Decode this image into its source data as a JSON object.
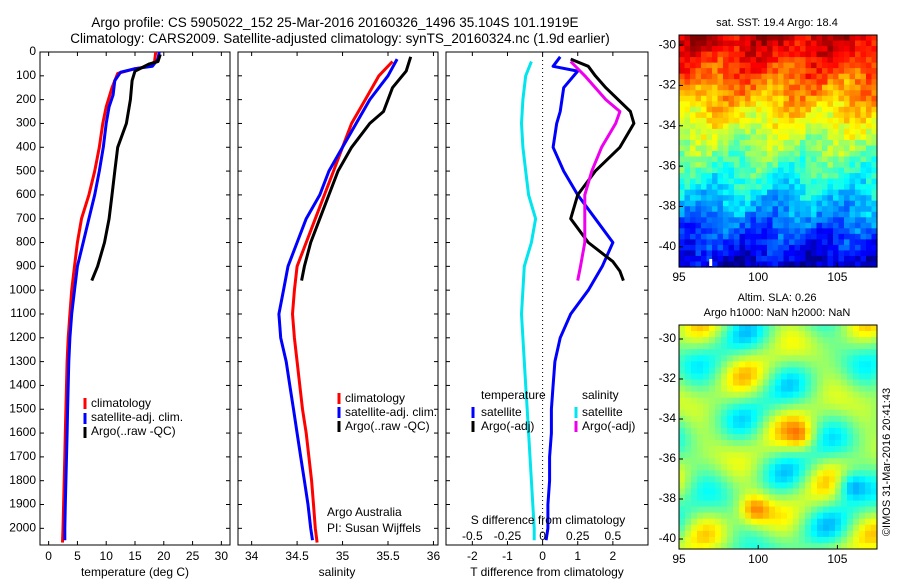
{
  "header": {
    "line1": "Argo profile: CS 5905022_152 25-Mar-2016 20160326_1496 35.104S 101.1919E",
    "line2": "Climatology: CARS2009. Satellite-adjusted climatology: synTS_20160324.nc (1.9d earlier)"
  },
  "footer_stamp": "©IMOS 31-Mar-2016 20:41:43",
  "colors": {
    "climatology": "#ff0000",
    "satellite": "#0000ff",
    "argo": "#000000",
    "salinity_satellite": "#00e5ee",
    "salinity_argo": "#ee00ee"
  },
  "chart_data": [
    {
      "id": "temperature",
      "type": "line",
      "xlabel": "temperature (deg C)",
      "xlim": [
        -1.5,
        31.5
      ],
      "xticks": [
        0,
        5,
        10,
        15,
        20,
        25,
        30
      ],
      "ylim": [
        0,
        2070
      ],
      "yticks": [
        0,
        100,
        200,
        300,
        400,
        500,
        600,
        700,
        800,
        900,
        1000,
        1100,
        1200,
        1300,
        1400,
        1500,
        1600,
        1700,
        1800,
        1900,
        2000
      ],
      "legend": {
        "placement": "lower-center",
        "entries": [
          "climatology",
          "satellite-adj. clim.",
          "Argo(..raw -QC)"
        ]
      },
      "series": [
        {
          "name": "climatology",
          "color": "#ff0000",
          "points": [
            [
              18.6,
              0
            ],
            [
              18.4,
              40
            ],
            [
              17.5,
              60
            ],
            [
              15.0,
              70
            ],
            [
              12.0,
              90
            ],
            [
              11.0,
              150
            ],
            [
              10.0,
              230
            ],
            [
              9.4,
              300
            ],
            [
              8.8,
              400
            ],
            [
              8.0,
              500
            ],
            [
              7.0,
              600
            ],
            [
              5.7,
              700
            ],
            [
              5.0,
              800
            ],
            [
              4.5,
              900
            ],
            [
              4.0,
              1000
            ],
            [
              3.7,
              1100
            ],
            [
              3.4,
              1200
            ],
            [
              3.2,
              1300
            ],
            [
              3.1,
              1400
            ],
            [
              3.0,
              1500
            ],
            [
              2.9,
              1600
            ],
            [
              2.8,
              1700
            ],
            [
              2.7,
              1800
            ],
            [
              2.6,
              1900
            ],
            [
              2.5,
              2000
            ],
            [
              2.4,
              2060
            ]
          ]
        },
        {
          "name": "satellite-adj. clim.",
          "color": "#0000ff",
          "points": [
            [
              19.2,
              0
            ],
            [
              19.0,
              30
            ],
            [
              18.0,
              60
            ],
            [
              15.0,
              70
            ],
            [
              12.5,
              85
            ],
            [
              11.5,
              120
            ],
            [
              11.2,
              180
            ],
            [
              10.5,
              230
            ],
            [
              10.0,
              300
            ],
            [
              9.5,
              400
            ],
            [
              8.8,
              500
            ],
            [
              8.0,
              600
            ],
            [
              7.0,
              700
            ],
            [
              6.0,
              800
            ],
            [
              5.0,
              900
            ],
            [
              4.5,
              1000
            ],
            [
              4.0,
              1100
            ],
            [
              3.7,
              1200
            ],
            [
              3.5,
              1300
            ],
            [
              3.4,
              1400
            ],
            [
              3.3,
              1500
            ],
            [
              3.2,
              1600
            ],
            [
              3.1,
              1700
            ],
            [
              3.0,
              1800
            ],
            [
              2.9,
              1900
            ],
            [
              2.8,
              2000
            ],
            [
              2.8,
              2050
            ]
          ]
        },
        {
          "name": "Argo(..raw -QC)",
          "color": "#000000",
          "points": [
            [
              19.4,
              10
            ],
            [
              19.0,
              40
            ],
            [
              17.5,
              50
            ],
            [
              15.0,
              80
            ],
            [
              14.5,
              120
            ],
            [
              14.2,
              200
            ],
            [
              13.5,
              300
            ],
            [
              12.0,
              400
            ],
            [
              11.5,
              500
            ],
            [
              11.0,
              600
            ],
            [
              10.5,
              700
            ],
            [
              9.7,
              800
            ],
            [
              8.5,
              900
            ],
            [
              7.5,
              960
            ]
          ]
        }
      ]
    },
    {
      "id": "salinity",
      "type": "line",
      "xlabel": "salinity",
      "xlim": [
        33.85,
        36.05
      ],
      "xticks": [
        34,
        34.5,
        35,
        35.5,
        36
      ],
      "ylim": [
        0,
        2070
      ],
      "legend": {
        "placement": "lower-center",
        "entries": [
          "climatology",
          "satellite-adj. clim.",
          "Argo(..raw -QC)"
        ]
      },
      "annotation": [
        "Argo Australia",
        "PI: Susan Wijffels"
      ],
      "series": [
        {
          "name": "climatology",
          "color": "#ff0000",
          "points": [
            [
              35.55,
              40
            ],
            [
              35.4,
              100
            ],
            [
              35.25,
              200
            ],
            [
              35.1,
              300
            ],
            [
              35.0,
              400
            ],
            [
              34.9,
              500
            ],
            [
              34.8,
              600
            ],
            [
              34.7,
              700
            ],
            [
              34.6,
              800
            ],
            [
              34.5,
              900
            ],
            [
              34.47,
              1000
            ],
            [
              34.45,
              1100
            ],
            [
              34.47,
              1200
            ],
            [
              34.5,
              1300
            ],
            [
              34.53,
              1400
            ],
            [
              34.56,
              1500
            ],
            [
              34.6,
              1600
            ],
            [
              34.63,
              1700
            ],
            [
              34.66,
              1800
            ],
            [
              34.68,
              1900
            ],
            [
              34.7,
              2000
            ],
            [
              34.72,
              2060
            ]
          ]
        },
        {
          "name": "satellite-adj. clim.",
          "color": "#0000ff",
          "points": [
            [
              35.6,
              30
            ],
            [
              35.5,
              100
            ],
            [
              35.3,
              200
            ],
            [
              35.15,
              300
            ],
            [
              35.0,
              400
            ],
            [
              34.85,
              500
            ],
            [
              34.75,
              600
            ],
            [
              34.6,
              700
            ],
            [
              34.5,
              800
            ],
            [
              34.4,
              900
            ],
            [
              34.35,
              1000
            ],
            [
              34.3,
              1100
            ],
            [
              34.32,
              1200
            ],
            [
              34.38,
              1300
            ],
            [
              34.42,
              1400
            ],
            [
              34.46,
              1500
            ],
            [
              34.5,
              1600
            ],
            [
              34.54,
              1700
            ],
            [
              34.58,
              1800
            ],
            [
              34.62,
              1900
            ],
            [
              34.65,
              2000
            ],
            [
              34.67,
              2050
            ]
          ]
        },
        {
          "name": "Argo(..raw -QC)",
          "color": "#000000",
          "points": [
            [
              35.75,
              20
            ],
            [
              35.7,
              80
            ],
            [
              35.55,
              150
            ],
            [
              35.45,
              250
            ],
            [
              35.3,
              300
            ],
            [
              35.1,
              400
            ],
            [
              34.95,
              500
            ],
            [
              34.85,
              600
            ],
            [
              34.75,
              700
            ],
            [
              34.65,
              800
            ],
            [
              34.58,
              900
            ],
            [
              34.55,
              960
            ]
          ]
        }
      ]
    },
    {
      "id": "difference",
      "type": "line",
      "xlabel": "T difference from climatology",
      "xlabel_top": "S difference from climatology",
      "xlim": [
        -2.75,
        3.0
      ],
      "xticks": [
        -2,
        -1,
        0,
        1,
        2
      ],
      "xticks_salinity": [
        -0.5,
        -0.25,
        0,
        0.25,
        0.5
      ],
      "xtick_labels_salinity": [
        "-0.5",
        "-0.25",
        "0",
        "0.25",
        "0.5"
      ],
      "zero_line": "dotted",
      "legend": {
        "placement": "lower-center",
        "col1_title": "temperature",
        "col2_title": "salinity",
        "entries": [
          "satellite",
          "Argo(-adj)",
          "satellite",
          "Argo(-adj)"
        ]
      },
      "series": [
        {
          "name": "satellite",
          "group": "temperature",
          "color": "#0000ff",
          "points": [
            [
              0.5,
              20
            ],
            [
              0.3,
              60
            ],
            [
              1.0,
              80
            ],
            [
              0.6,
              150
            ],
            [
              0.5,
              250
            ],
            [
              0.4,
              300
            ],
            [
              0.3,
              400
            ],
            [
              0.6,
              500
            ],
            [
              1.0,
              600
            ],
            [
              1.5,
              700
            ],
            [
              2.0,
              800
            ],
            [
              1.7,
              900
            ],
            [
              1.3,
              1000
            ],
            [
              0.8,
              1100
            ],
            [
              0.5,
              1200
            ],
            [
              0.35,
              1300
            ],
            [
              0.3,
              1400
            ],
            [
              0.25,
              1500
            ],
            [
              0.25,
              1600
            ],
            [
              0.2,
              1700
            ],
            [
              0.2,
              1800
            ],
            [
              0.15,
              1900
            ],
            [
              0.15,
              2000
            ],
            [
              0.1,
              2050
            ]
          ]
        },
        {
          "name": "Argo(-adj)",
          "group": "temperature",
          "color": "#000000",
          "points": [
            [
              0.8,
              30
            ],
            [
              1.3,
              60
            ],
            [
              1.5,
              100
            ],
            [
              1.8,
              150
            ],
            [
              2.5,
              250
            ],
            [
              2.6,
              300
            ],
            [
              2.2,
              400
            ],
            [
              1.5,
              500
            ],
            [
              1.0,
              600
            ],
            [
              0.8,
              700
            ],
            [
              1.3,
              800
            ],
            [
              2.0,
              880
            ],
            [
              2.2,
              920
            ],
            [
              2.3,
              960
            ]
          ]
        },
        {
          "name": "satellite",
          "group": "salinity",
          "color": "#00e5ee",
          "points": [
            [
              -0.08,
              40
            ],
            [
              -0.12,
              100
            ],
            [
              -0.14,
              200
            ],
            [
              -0.15,
              300
            ],
            [
              -0.14,
              400
            ],
            [
              -0.12,
              500
            ],
            [
              -0.1,
              600
            ],
            [
              -0.05,
              700
            ],
            [
              -0.08,
              800
            ],
            [
              -0.13,
              900
            ],
            [
              -0.14,
              1000
            ],
            [
              -0.15,
              1100
            ],
            [
              -0.14,
              1200
            ],
            [
              -0.13,
              1300
            ],
            [
              -0.12,
              1400
            ],
            [
              -0.11,
              1500
            ],
            [
              -0.1,
              1600
            ],
            [
              -0.09,
              1700
            ],
            [
              -0.08,
              1800
            ],
            [
              -0.07,
              1900
            ],
            [
              -0.06,
              2000
            ],
            [
              -0.06,
              2050
            ]
          ]
        },
        {
          "name": "Argo(-adj)",
          "group": "salinity",
          "color": "#ee00ee",
          "points": [
            [
              0.2,
              40
            ],
            [
              0.3,
              100
            ],
            [
              0.45,
              200
            ],
            [
              0.55,
              250
            ],
            [
              0.52,
              300
            ],
            [
              0.42,
              400
            ],
            [
              0.35,
              500
            ],
            [
              0.3,
              600
            ],
            [
              0.3,
              700
            ],
            [
              0.3,
              800
            ],
            [
              0.27,
              900
            ],
            [
              0.25,
              960
            ]
          ]
        }
      ]
    },
    {
      "id": "sst-map",
      "type": "heatmap",
      "title": "sat. SST: 19.4  Argo: 18.4",
      "xlim": [
        95,
        107.5
      ],
      "xticks": [
        95,
        100,
        105
      ],
      "ylim": [
        -41,
        -29.5
      ],
      "yticks": [
        -30,
        -32,
        -34,
        -36,
        -38,
        -40
      ],
      "colormap": "jet",
      "marker": {
        "lon": 97.0,
        "lat": -41.0
      }
    },
    {
      "id": "sla-map",
      "type": "heatmap",
      "title_line1": "Altim. SLA: 0.26",
      "title_line2": "Argo h1000: NaN h2000: NaN",
      "xlim": [
        95,
        107.5
      ],
      "xticks": [
        95,
        100,
        105
      ],
      "ylim": [
        -40.5,
        -29.3
      ],
      "yticks": [
        -30,
        -32,
        -34,
        -36,
        -38,
        -40
      ],
      "colormap": "jet"
    }
  ]
}
